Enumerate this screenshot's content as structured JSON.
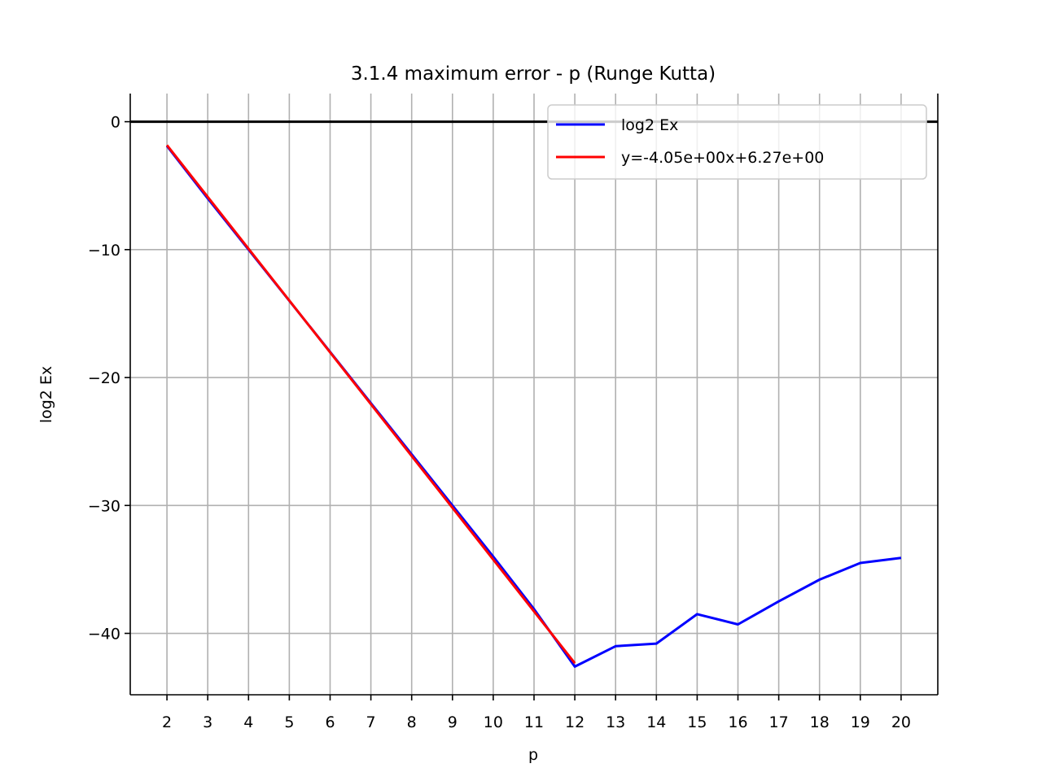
{
  "chart_data": {
    "type": "line",
    "title": "3.1.4 maximum error - p (Runge Kutta)",
    "xlabel": "p",
    "ylabel": "log2 Ex",
    "xlim": [
      1.1,
      20.9
    ],
    "ylim": [
      -44.8,
      2.2
    ],
    "grid": true,
    "xticks": [
      2,
      3,
      4,
      5,
      6,
      7,
      8,
      9,
      10,
      11,
      12,
      13,
      14,
      15,
      16,
      17,
      18,
      19,
      20
    ],
    "xtick_labels": [
      "2",
      "3",
      "4",
      "5",
      "6",
      "7",
      "8",
      "9",
      "10",
      "11",
      "12",
      "13",
      "14",
      "15",
      "16",
      "17",
      "18",
      "19",
      "20"
    ],
    "yticks": [
      0,
      -10,
      -20,
      -30,
      -40
    ],
    "ytick_labels": [
      "0",
      "−10",
      "−20",
      "−30",
      "−40"
    ],
    "hline_y": 0,
    "legend_position": "top-right",
    "series": [
      {
        "name": "log2 Ex",
        "color": "#0000ff",
        "x": [
          2,
          3,
          4,
          5,
          6,
          7,
          8,
          9,
          10,
          11,
          12,
          13,
          14,
          15,
          16,
          17,
          18,
          19,
          20
        ],
        "y": [
          -1.9,
          -6.0,
          -10.0,
          -14.0,
          -18.0,
          -22.0,
          -26.0,
          -30.0,
          -34.0,
          -38.1,
          -42.6,
          -41.0,
          -40.8,
          -38.5,
          -39.3,
          -37.5,
          -35.8,
          -34.5,
          -34.1
        ]
      },
      {
        "name": "y=-4.05e+00x+6.27e+00",
        "color": "#ff0000",
        "x": [
          2,
          12
        ],
        "y": [
          -1.83,
          -42.33
        ]
      }
    ]
  }
}
